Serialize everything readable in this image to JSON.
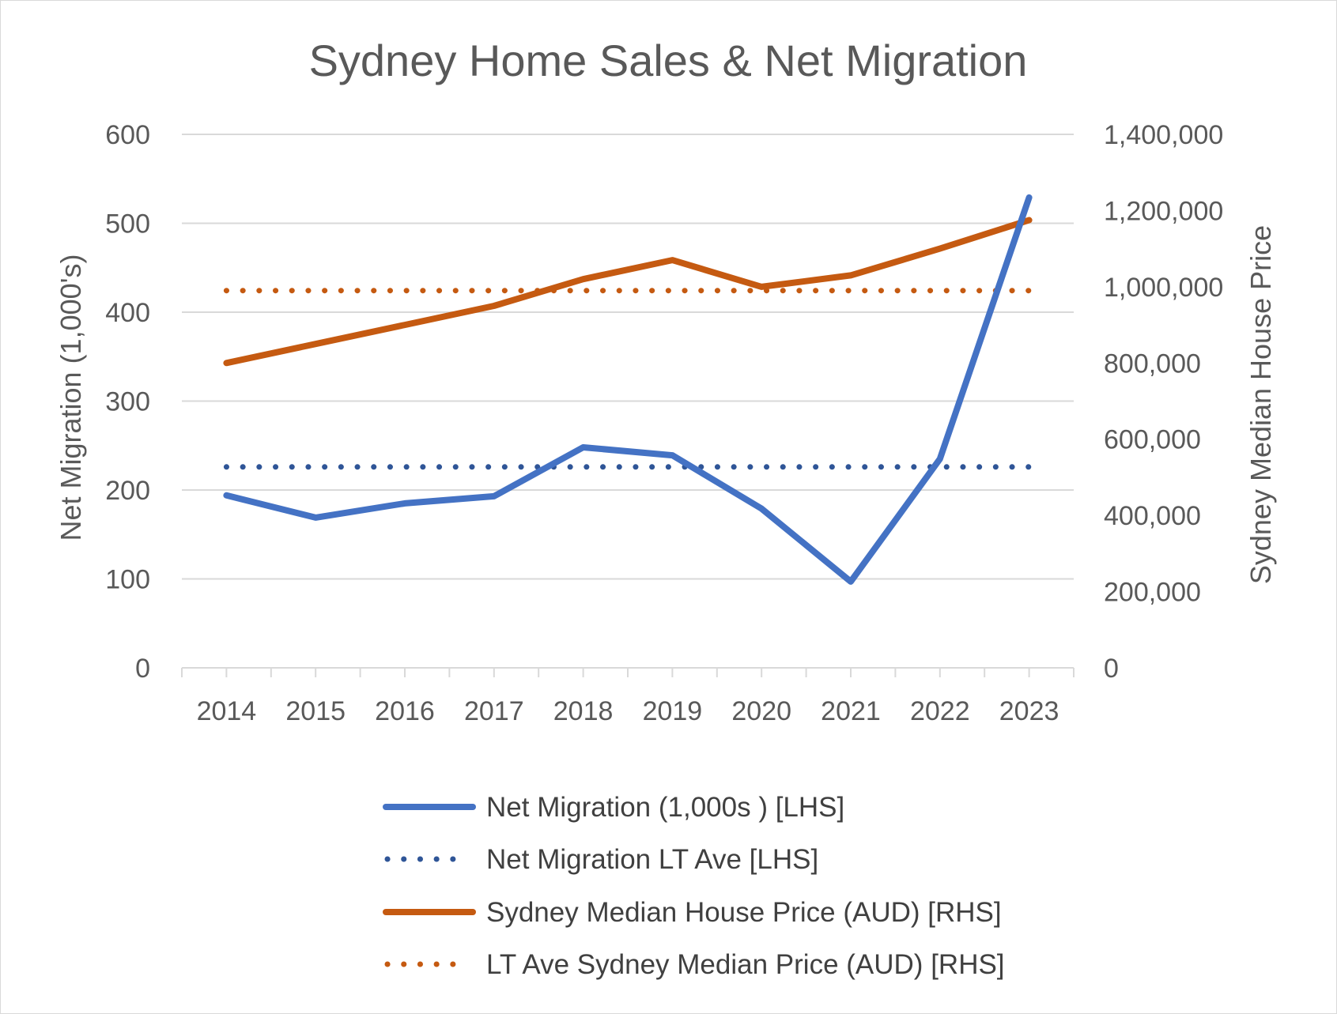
{
  "chart_data": {
    "type": "line",
    "title": "Sydney Home Sales & Net Migration",
    "categories": [
      "2014",
      "2015",
      "2016",
      "2017",
      "2018",
      "2019",
      "2020",
      "2021",
      "2022",
      "2023"
    ],
    "left_axis": {
      "label": "Net Migration (1,000's)",
      "range": [
        0,
        600
      ],
      "ticks": [
        "0",
        "100",
        "200",
        "300",
        "400",
        "500",
        "600"
      ]
    },
    "right_axis": {
      "label": "Sydney Median House Price",
      "range": [
        0,
        1400000
      ],
      "ticks": [
        "0",
        "200,000",
        "400,000",
        "600,000",
        "800,000",
        "1,000,000",
        "1,200,000",
        "1,400,000"
      ]
    },
    "grid": true,
    "legend_position": "bottom",
    "series": [
      {
        "name": "Net Migration (1,000s ) [LHS]",
        "axis": "left",
        "style": "solid",
        "color": "#4472C4",
        "values": [
          194,
          169,
          185,
          193,
          248,
          239,
          179,
          97,
          235,
          529
        ]
      },
      {
        "name": "Net Migration LT Ave [LHS]",
        "axis": "left",
        "style": "dotted",
        "color": "#2F5597",
        "values": [
          226,
          226,
          226,
          226,
          226,
          226,
          226,
          226,
          226,
          226
        ]
      },
      {
        "name": "Sydney Median House Price (AUD) [RHS]",
        "axis": "right",
        "style": "solid",
        "color": "#C55A11",
        "values": [
          800000,
          850000,
          900000,
          950000,
          1020000,
          1070000,
          1000000,
          1030000,
          1100000,
          1175000
        ]
      },
      {
        "name": "LT Ave Sydney Median Price (AUD) [RHS]",
        "axis": "right",
        "style": "dotted",
        "color": "#C55A11",
        "values": [
          990000,
          990000,
          990000,
          990000,
          990000,
          990000,
          990000,
          990000,
          990000,
          990000
        ]
      }
    ]
  }
}
